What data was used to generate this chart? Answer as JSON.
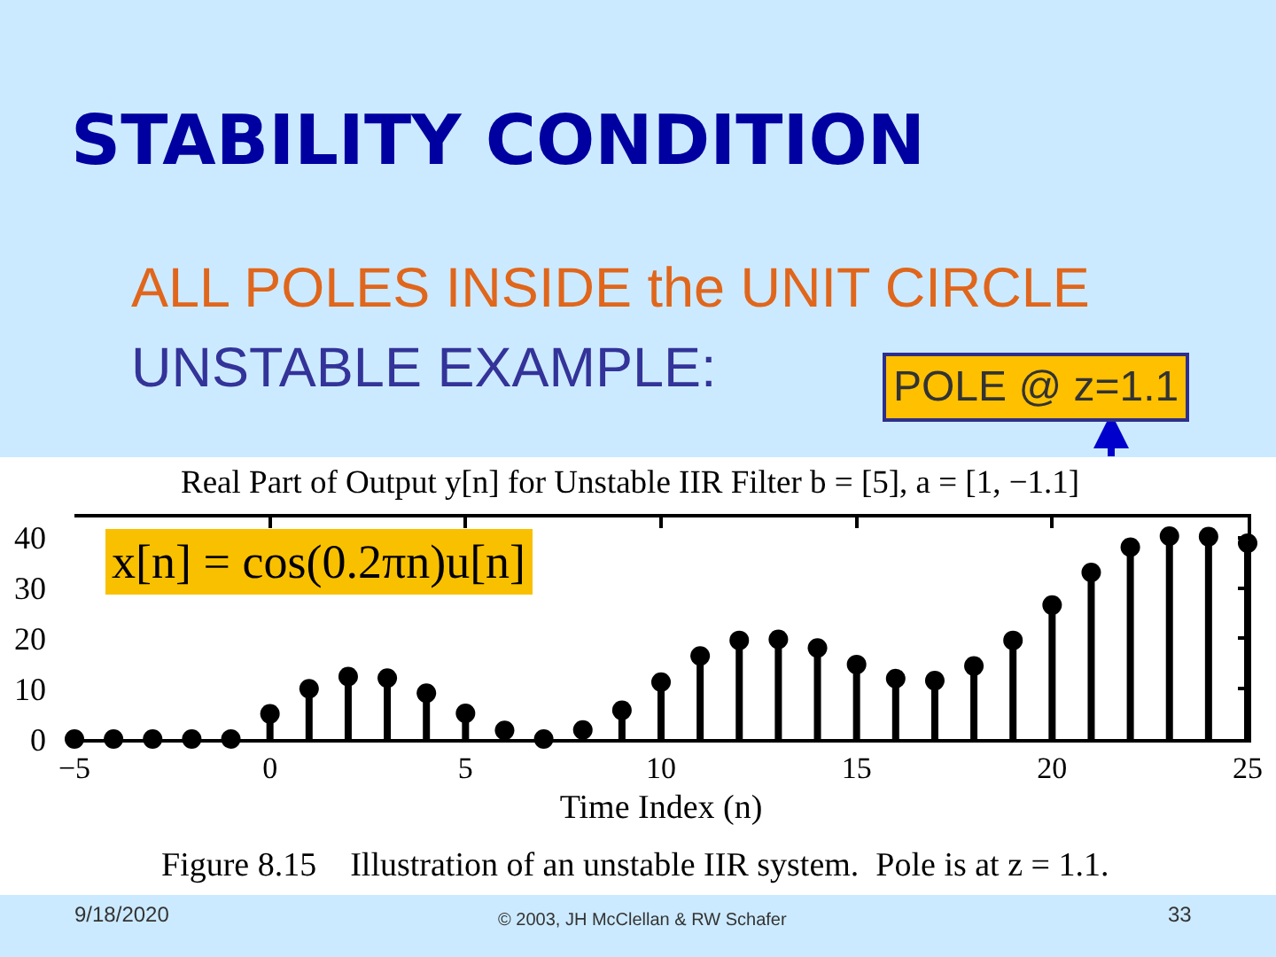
{
  "chart_data": {
    "type": "lollipop",
    "title": "STABILITY CONDITION",
    "subtitle": "Real Part of Output y[n] for Unstable IIR Filter b = [5], a = [1, −1.1]",
    "xlabel": "Time Index (n)",
    "x": [
      -5,
      -4,
      -3,
      -2,
      -1,
      0,
      1,
      2,
      3,
      4,
      5,
      6,
      7,
      8,
      9,
      10,
      11,
      12,
      13,
      14,
      15,
      16,
      17,
      18,
      19,
      20,
      21,
      22,
      23,
      24,
      25
    ],
    "series": [
      {
        "color": "#000000",
        "values": [
          0,
          0,
          0,
          0,
          0,
          5,
          10,
          12.4,
          12.1,
          9.1,
          5.1,
          1.7,
          0,
          1.8,
          5.7,
          11.3,
          16.5,
          19.6,
          19.8,
          18.1,
          14.8,
          12.0,
          11.6,
          14.5,
          19.6,
          26.6,
          33.1,
          38.1,
          40.3,
          40.2,
          38.9
        ]
      }
    ],
    "marker": "circle",
    "xlim": [
      -5,
      25
    ],
    "xticks": [
      {
        "value": -5,
        "label": "−5"
      },
      0,
      5,
      10,
      15,
      20,
      25
    ],
    "ylim": [
      0,
      44
    ],
    "yticks": [
      0,
      10,
      20,
      30,
      40
    ],
    "grid": false,
    "annotations": [
      "ALL POLES INSIDE the UNIT CIRCLE",
      "UNSTABLE EXAMPLE:",
      "POLE @ z=1.1",
      "x[n] = cos(0.2πn)u[n]",
      "Figure 8.15    Illustration of an unstable IIR system.  Pole is at z = 1.1.",
      "9/18/2020",
      "© 2003, JH McClellan & RW Schafer",
      "33"
    ]
  }
}
